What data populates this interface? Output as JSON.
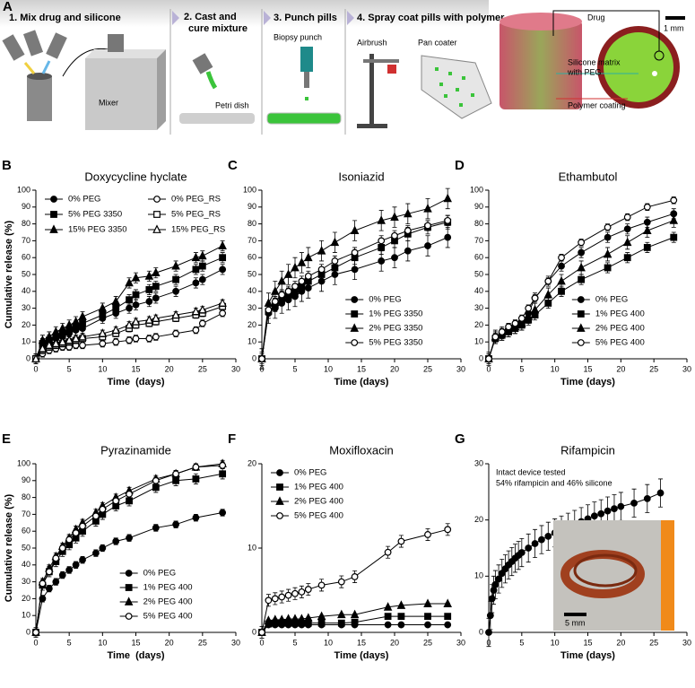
{
  "panel_a": {
    "panel": "A",
    "steps": [
      "1. Mix drug and silicone",
      "2. Cast and",
      "cure mixture",
      "3. Punch pills",
      "4. Spray coat pills with polymer"
    ],
    "labels": {
      "mixer": "Mixer",
      "petri": "Petri dish",
      "punch": "Biopsy punch",
      "airbrush": "Airbrush",
      "pan": "Pan coater",
      "drug": "Drug",
      "scale": "1 mm",
      "matrix1": "Silicone matrix",
      "matrix2": "with PEG",
      "coating": "Polymer coating"
    }
  },
  "chart_data": [
    {
      "type": "line",
      "panel": "B",
      "title": "Doxycycline hyclate",
      "xlabel": "Time  (days)",
      "ylabel": "Cumulative release (%)",
      "xlim": [
        0,
        30
      ],
      "xticks": [
        0,
        5,
        10,
        15,
        20,
        25,
        30
      ],
      "ylim": [
        0,
        100
      ],
      "yticks": [
        0,
        10,
        20,
        30,
        40,
        50,
        60,
        70,
        80,
        90,
        100
      ],
      "legend": "top",
      "x": [
        0,
        1,
        2,
        3,
        4,
        5,
        6,
        7,
        10,
        12,
        14,
        15,
        17,
        18,
        21,
        24,
        25,
        28
      ],
      "series": [
        {
          "name": "0% PEG",
          "color": "#000000",
          "marker": "circle",
          "filled": true,
          "error": 3,
          "values": [
            0,
            8,
            10,
            12,
            13,
            15,
            17,
            18,
            24,
            27,
            30,
            32,
            34,
            36,
            40,
            45,
            47,
            53
          ]
        },
        {
          "name": "5% PEG 3350",
          "color": "#000000",
          "marker": "square",
          "filled": true,
          "error": 3,
          "values": [
            0,
            9,
            11,
            13,
            15,
            17,
            19,
            21,
            26,
            30,
            35,
            38,
            41,
            43,
            47,
            53,
            55,
            60
          ]
        },
        {
          "name": "15% PEG 3350",
          "color": "#000000",
          "marker": "triangle",
          "filled": true,
          "error": 3,
          "values": [
            0,
            11,
            13,
            16,
            18,
            20,
            22,
            25,
            30,
            34,
            45,
            48,
            49,
            51,
            55,
            60,
            61,
            67
          ]
        },
        {
          "name": "0% PEG_RS",
          "color": "#000000",
          "marker": "circle",
          "filled": false,
          "error": 2,
          "values": [
            0,
            3,
            5,
            6,
            7,
            7,
            8,
            8,
            9,
            10,
            11,
            12,
            12,
            13,
            15,
            17,
            21,
            27
          ]
        },
        {
          "name": "5% PEG_RS",
          "color": "#000000",
          "marker": "square",
          "filled": false,
          "error": 2,
          "values": [
            0,
            5,
            7,
            8,
            9,
            10,
            11,
            12,
            13,
            15,
            18,
            20,
            21,
            22,
            24,
            26,
            27,
            31
          ]
        },
        {
          "name": "15% PEG_RS",
          "color": "#000000",
          "marker": "triangle",
          "filled": false,
          "error": 2,
          "values": [
            0,
            6,
            8,
            9,
            10,
            11,
            12,
            13,
            15,
            17,
            20,
            22,
            23,
            24,
            26,
            28,
            29,
            33
          ]
        }
      ]
    },
    {
      "type": "line",
      "panel": "C",
      "title": "Isoniazid",
      "xlabel": "Time (days)",
      "xlim": [
        0,
        30
      ],
      "xticks": [
        0,
        5,
        10,
        15,
        20,
        25,
        30
      ],
      "ylim": [
        0,
        100
      ],
      "yticks": [
        0,
        10,
        20,
        30,
        40,
        50,
        60,
        70,
        80,
        90,
        100
      ],
      "legend": "lower right",
      "x": [
        0,
        1,
        2,
        3,
        4,
        5,
        6,
        7,
        9,
        11,
        14,
        18,
        20,
        22,
        25,
        28
      ],
      "series": [
        {
          "name": "0% PEG",
          "color": "#000000",
          "marker": "circle",
          "filled": true,
          "error": 6,
          "values": [
            0,
            27,
            30,
            33,
            35,
            37,
            40,
            42,
            46,
            50,
            53,
            58,
            60,
            64,
            67,
            72
          ]
        },
        {
          "name": "1% PEG 3350",
          "color": "#000000",
          "marker": "square",
          "filled": true,
          "error": 4,
          "values": [
            0,
            28,
            32,
            36,
            38,
            40,
            43,
            46,
            50,
            54,
            60,
            66,
            70,
            74,
            78,
            81
          ]
        },
        {
          "name": "2% PEG 3350",
          "color": "#000000",
          "marker": "triangle",
          "filled": true,
          "error": 6,
          "values": [
            0,
            33,
            40,
            46,
            50,
            54,
            57,
            60,
            64,
            69,
            76,
            82,
            84,
            86,
            89,
            95
          ]
        },
        {
          "name": "5% PEG 3350",
          "color": "#000000",
          "marker": "circle",
          "filled": false,
          "error": 3,
          "values": [
            0,
            29,
            34,
            38,
            40,
            43,
            46,
            49,
            53,
            58,
            63,
            70,
            73,
            76,
            79,
            82
          ]
        }
      ]
    },
    {
      "type": "line",
      "panel": "D",
      "title": "Ethambutol",
      "xlabel": "Time (days)",
      "xlim": [
        0,
        30
      ],
      "xticks": [
        0,
        5,
        10,
        15,
        20,
        25,
        30
      ],
      "ylim": [
        0,
        100
      ],
      "yticks": [
        0,
        10,
        20,
        30,
        40,
        50,
        60,
        70,
        80,
        90,
        100
      ],
      "legend": "lower right",
      "x": [
        0,
        1,
        2,
        3,
        4,
        5,
        6,
        7,
        9,
        11,
        14,
        18,
        21,
        24,
        28
      ],
      "series": [
        {
          "name": "0% PEG",
          "color": "#000000",
          "marker": "circle",
          "filled": true,
          "error": 3,
          "values": [
            0,
            13,
            15,
            18,
            20,
            22,
            27,
            36,
            46,
            55,
            63,
            72,
            77,
            81,
            86
          ]
        },
        {
          "name": "1% PEG 400",
          "color": "#000000",
          "marker": "square",
          "filled": true,
          "error": 3,
          "values": [
            0,
            12,
            14,
            16,
            18,
            20,
            23,
            26,
            33,
            40,
            47,
            54,
            60,
            66,
            72
          ]
        },
        {
          "name": "2% PEG 400",
          "color": "#000000",
          "marker": "triangle",
          "filled": true,
          "error": 4,
          "values": [
            0,
            13,
            15,
            17,
            19,
            21,
            25,
            29,
            38,
            46,
            54,
            62,
            69,
            76,
            82
          ]
        },
        {
          "name": "5% PEG 400",
          "color": "#000000",
          "marker": "circle",
          "filled": false,
          "error": 2,
          "values": [
            0,
            13,
            16,
            19,
            21,
            24,
            30,
            36,
            46,
            60,
            69,
            78,
            84,
            90,
            94
          ]
        }
      ]
    },
    {
      "type": "line",
      "panel": "E",
      "title": "Pyrazinamide",
      "xlabel": "Time  (days)",
      "ylabel": "Cumulative release (%)",
      "xlim": [
        0,
        30
      ],
      "xticks": [
        0,
        5,
        10,
        15,
        20,
        25,
        30
      ],
      "ylim": [
        0,
        100
      ],
      "yticks": [
        0,
        10,
        20,
        30,
        40,
        50,
        60,
        70,
        80,
        90,
        100
      ],
      "legend": "lower right",
      "x": [
        0,
        1,
        2,
        3,
        4,
        5,
        6,
        7,
        9,
        10,
        12,
        14,
        18,
        21,
        24,
        28
      ],
      "series": [
        {
          "name": "0% PEG",
          "color": "#000000",
          "marker": "circle",
          "filled": true,
          "error": 2,
          "values": [
            0,
            20,
            26,
            30,
            34,
            37,
            40,
            43,
            47,
            50,
            54,
            56,
            62,
            64,
            68,
            71
          ]
        },
        {
          "name": "1% PEG 400",
          "color": "#000000",
          "marker": "square",
          "filled": true,
          "error": 3,
          "values": [
            0,
            28,
            36,
            42,
            48,
            52,
            56,
            60,
            66,
            70,
            75,
            78,
            86,
            90,
            91,
            94
          ]
        },
        {
          "name": "2% PEG 400",
          "color": "#000000",
          "marker": "triangle",
          "filled": true,
          "error": 2,
          "values": [
            0,
            30,
            38,
            45,
            51,
            56,
            61,
            65,
            71,
            75,
            80,
            84,
            91,
            94,
            98,
            100
          ]
        },
        {
          "name": "5% PEG 400",
          "color": "#000000",
          "marker": "circle",
          "filled": false,
          "error": 2,
          "values": [
            0,
            29,
            36,
            44,
            50,
            55,
            59,
            63,
            69,
            73,
            78,
            82,
            90,
            94,
            98,
            99
          ]
        }
      ]
    },
    {
      "type": "line",
      "panel": "F",
      "title": "Moxifloxacin",
      "xlabel": "Time (days)",
      "xlim": [
        0,
        30
      ],
      "xticks": [
        0,
        5,
        10,
        15,
        20,
        25,
        30
      ],
      "ylim": [
        0,
        20
      ],
      "yticks": [
        0,
        10,
        20
      ],
      "legend": "upper left",
      "x": [
        0,
        1,
        2,
        3,
        4,
        5,
        6,
        7,
        9,
        12,
        14,
        19,
        21,
        25,
        28
      ],
      "series": [
        {
          "name": "0% PEG",
          "color": "#000000",
          "marker": "circle",
          "filled": true,
          "error": 0.1,
          "values": [
            0,
            0.9,
            0.9,
            0.9,
            0.9,
            0.9,
            0.9,
            0.9,
            0.9,
            0.9,
            0.9,
            0.9,
            0.9,
            0.9,
            0.9
          ]
        },
        {
          "name": "1% PEG 400",
          "color": "#000000",
          "marker": "square",
          "filled": true,
          "error": 0.1,
          "values": [
            0,
            1.0,
            1.1,
            1.1,
            1.1,
            1.1,
            1.1,
            1.1,
            1.1,
            1.1,
            1.2,
            1.9,
            1.9,
            1.9,
            1.9
          ]
        },
        {
          "name": "2% PEG 400",
          "color": "#000000",
          "marker": "triangle",
          "filled": true,
          "error": 0.1,
          "values": [
            0,
            1.4,
            1.5,
            1.5,
            1.6,
            1.6,
            1.6,
            1.7,
            1.9,
            2.1,
            2.1,
            3.0,
            3.2,
            3.4,
            3.4
          ]
        },
        {
          "name": "5% PEG 400",
          "color": "#000000",
          "marker": "circle",
          "filled": false,
          "error": 0.7,
          "values": [
            0,
            3.8,
            4.0,
            4.2,
            4.4,
            4.6,
            4.8,
            5.1,
            5.6,
            6.0,
            6.6,
            9.5,
            10.8,
            11.6,
            12.2
          ]
        }
      ]
    },
    {
      "type": "line",
      "panel": "G",
      "title": "Rifampicin",
      "xlabel": "Time (days)",
      "xlim": [
        0,
        30
      ],
      "xticks": [
        0,
        5,
        10,
        15,
        20,
        25,
        30
      ],
      "ylim": [
        0,
        30
      ],
      "yticks": [
        0,
        10,
        20,
        30
      ],
      "annotation": [
        "Intact device tested",
        "54% rifampicin and 46% silicone"
      ],
      "inset_scale": "5 mm",
      "x": [
        0,
        0.25,
        0.5,
        0.75,
        1,
        1.5,
        2,
        2.5,
        3,
        3.5,
        4,
        4.5,
        5,
        6,
        7,
        8,
        9,
        10,
        11,
        12,
        13,
        14,
        15,
        16,
        17,
        18,
        19,
        20,
        22,
        24,
        26
      ],
      "series": [
        {
          "color": "#000000",
          "marker": "circle",
          "filled": true,
          "error": 2.5,
          "values": [
            0,
            3,
            6,
            7.5,
            8.5,
            9.5,
            10.5,
            11.3,
            12,
            12.6,
            13.2,
            13.7,
            14.2,
            15,
            15.8,
            16.5,
            17.1,
            17.7,
            18.2,
            18.7,
            19.2,
            19.7,
            20.2,
            20.7,
            21.1,
            21.6,
            22,
            22.4,
            23,
            23.8,
            24.8
          ]
        }
      ]
    }
  ]
}
